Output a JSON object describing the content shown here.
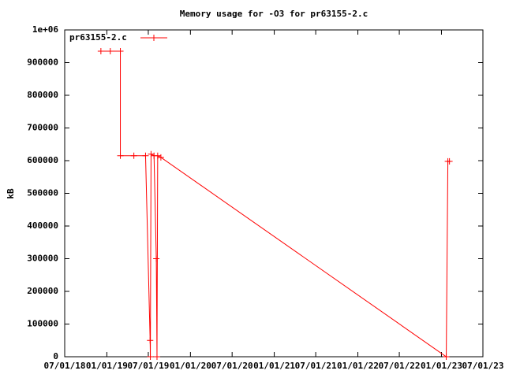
{
  "chart_data": {
    "type": "line",
    "title": "Memory usage for -O3 for pr63155-2.c",
    "y_label": "kB",
    "x": [
      "12/06/18",
      "01/16/19",
      "03/01/19",
      "03/01/19",
      "04/29/19",
      "06/19/19",
      "07/09/19",
      "07/10/19",
      "07/13/19",
      "07/26/19",
      "08/05/19",
      "08/08/19",
      "08/11/19",
      "08/25/19",
      "01/22/23",
      "01/29/23",
      "02/05/23"
    ],
    "series": [
      {
        "name": "pr63155-2.c",
        "color": "#ff0000",
        "values": [
          935000,
          935000,
          935000,
          615000,
          615000,
          615000,
          50000,
          0,
          620000,
          615000,
          300000,
          0,
          615000,
          610000,
          0,
          598000,
          598000
        ]
      }
    ],
    "xlim": [
      "07/01/18",
      "07/01/23"
    ],
    "xticks": [
      "07/01/18",
      "01/01/19",
      "07/01/19",
      "01/01/20",
      "07/01/20",
      "01/01/21",
      "07/01/21",
      "01/01/22",
      "07/01/22",
      "01/01/23",
      "07/01/23"
    ],
    "ylim": [
      0,
      1000000
    ],
    "yticks": [
      0,
      100000,
      200000,
      300000,
      400000,
      500000,
      600000,
      700000,
      800000,
      900000,
      {
        "value": 1000000,
        "label": "1e+06"
      }
    ],
    "legend": "top-left"
  }
}
